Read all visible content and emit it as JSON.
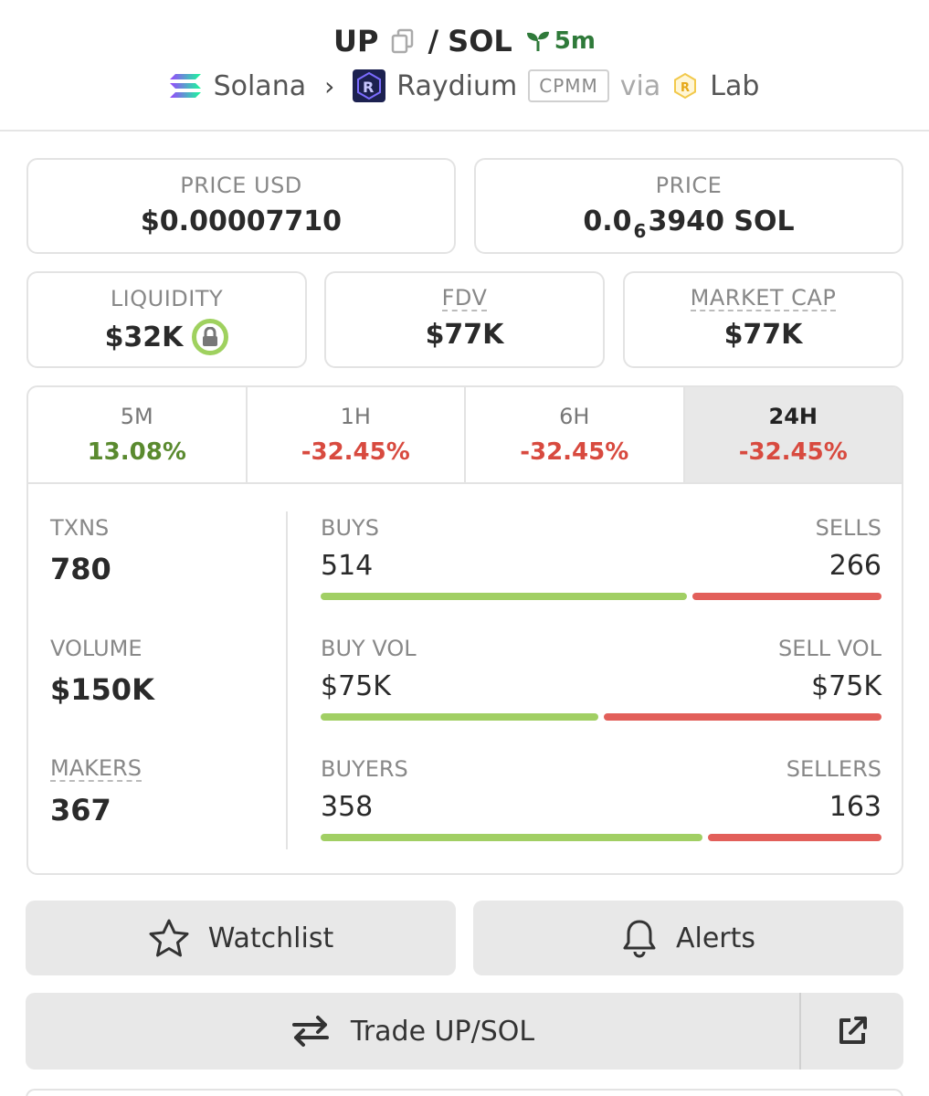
{
  "header": {
    "base": "UP",
    "separator": "/",
    "quote": "SOL",
    "age": "5m",
    "chain": "Solana",
    "dex": "Raydium",
    "pool_type": "CPMM",
    "via": "via",
    "via_source": "Lab"
  },
  "price_usd": {
    "label": "PRICE USD",
    "value": "$0.00007710"
  },
  "price": {
    "label": "PRICE",
    "prefix": "0.0",
    "zeros": "6",
    "digits": "3940 SOL"
  },
  "liquidity": {
    "label": "LIQUIDITY",
    "value": "$32K"
  },
  "fdv": {
    "label": "FDV",
    "value": "$77K"
  },
  "market_cap": {
    "label": "MARKET CAP",
    "value": "$77K"
  },
  "tabs": [
    {
      "label": "5M",
      "value": "13.08%",
      "color": "#5a8a2f"
    },
    {
      "label": "1H",
      "value": "-32.45%",
      "color": "#d84a3f"
    },
    {
      "label": "6H",
      "value": "-32.45%",
      "color": "#d84a3f"
    },
    {
      "label": "24H",
      "value": "-32.45%",
      "color": "#d84a3f",
      "active": true
    }
  ],
  "txns": {
    "label": "TXNS",
    "value": "780"
  },
  "volume": {
    "label": "VOLUME",
    "value": "$150K"
  },
  "makers": {
    "label": "MAKERS",
    "value": "367"
  },
  "buys_sells": {
    "left_label": "BUYS",
    "right_label": "SELLS",
    "left_value": "514",
    "right_value": "266",
    "buy_fraction": 0.659
  },
  "vol_split": {
    "left_label": "BUY VOL",
    "right_label": "SELL VOL",
    "left_value": "$75K",
    "right_value": "$75K",
    "buy_fraction": 0.5
  },
  "buyers_sellers": {
    "left_label": "BUYERS",
    "right_label": "SELLERS",
    "left_value": "358",
    "right_value": "163",
    "buy_fraction": 0.687
  },
  "buttons": {
    "watchlist": "Watchlist",
    "alerts": "Alerts",
    "trade": "Trade UP/SOL"
  },
  "colors": {
    "green": "#a1cf64",
    "red": "#e25f5a",
    "age_green": "#2f7a3a"
  }
}
